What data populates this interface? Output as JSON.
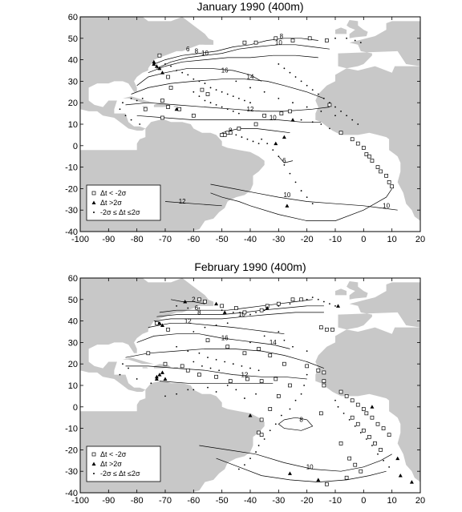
{
  "panels": [
    {
      "id": "jan",
      "title": "January 1990 (400m)",
      "legend": {
        "items": [
          {
            "symbol": "square",
            "label": "Δt < -2σ"
          },
          {
            "symbol": "triangle",
            "label": "Δt >2σ"
          },
          {
            "symbol": "dot",
            "label": "-2σ ≤ Δt ≤2σ"
          }
        ]
      },
      "contour_labels": [
        {
          "text": "6",
          "lon": -62,
          "lat": 44
        },
        {
          "text": "8",
          "lon": -59,
          "lat": 43
        },
        {
          "text": "10",
          "lon": -56,
          "lat": 42
        },
        {
          "text": "8",
          "lon": -29,
          "lat": 50
        },
        {
          "text": "10",
          "lon": -30,
          "lat": 47
        },
        {
          "text": "16",
          "lon": -49,
          "lat": 34
        },
        {
          "text": "14",
          "lon": -40,
          "lat": 31
        },
        {
          "text": "12",
          "lon": -40,
          "lat": 16
        },
        {
          "text": "10",
          "lon": -32,
          "lat": 12
        },
        {
          "text": "8",
          "lon": -47,
          "lat": 6
        },
        {
          "text": "6",
          "lon": -28,
          "lat": -8
        },
        {
          "text": "10",
          "lon": -27,
          "lat": -24
        },
        {
          "text": "12",
          "lon": -64,
          "lat": -27
        },
        {
          "text": "10",
          "lon": 8,
          "lat": -29
        }
      ],
      "squares": [
        [
          -72,
          42
        ],
        [
          -42,
          48
        ],
        [
          -38,
          48
        ],
        [
          -31,
          50
        ],
        [
          -25,
          49
        ],
        [
          -19,
          50
        ],
        [
          -13,
          49
        ],
        [
          -69,
          32
        ],
        [
          -68,
          27
        ],
        [
          -57,
          26
        ],
        [
          -55,
          24
        ],
        [
          -71,
          21
        ],
        [
          -69,
          18
        ],
        [
          -77,
          17
        ],
        [
          -65,
          17
        ],
        [
          -60,
          14
        ],
        [
          -71,
          13
        ],
        [
          -12,
          19
        ],
        [
          -26,
          16
        ],
        [
          -29,
          15
        ],
        [
          -35,
          14
        ],
        [
          -38,
          10
        ],
        [
          -44,
          8
        ],
        [
          -47,
          6
        ],
        [
          -48,
          6
        ],
        [
          -49,
          5
        ],
        [
          -50,
          5
        ],
        [
          -8,
          6
        ],
        [
          -4,
          3
        ],
        [
          -2,
          1
        ],
        [
          0,
          -1
        ],
        [
          1,
          -4
        ],
        [
          2,
          -5
        ],
        [
          3,
          -7
        ],
        [
          5,
          -10
        ],
        [
          6,
          -12
        ],
        [
          8,
          -14
        ],
        [
          9,
          -17
        ],
        [
          10,
          -19
        ]
      ],
      "triangles": [
        [
          -74,
          38
        ],
        [
          -73,
          37
        ],
        [
          -74,
          39
        ],
        [
          -72,
          36
        ],
        [
          -71,
          34
        ],
        [
          -66,
          17
        ],
        [
          -25,
          12
        ],
        [
          -28,
          4
        ],
        [
          -31,
          1
        ],
        [
          -27,
          -28
        ]
      ],
      "dots": [
        [
          -70,
          38
        ],
        [
          -68,
          37
        ],
        [
          -66,
          35
        ],
        [
          -64,
          34
        ],
        [
          -62,
          33
        ],
        [
          -60,
          31
        ],
        [
          -58,
          30
        ],
        [
          -56,
          29
        ],
        [
          -54,
          27
        ],
        [
          -52,
          26
        ],
        [
          -50,
          25
        ],
        [
          -48,
          24
        ],
        [
          -46,
          23
        ],
        [
          -44,
          22
        ],
        [
          -42,
          21
        ],
        [
          -40,
          20
        ],
        [
          -60,
          25
        ],
        [
          -58,
          23
        ],
        [
          -56,
          21
        ],
        [
          -54,
          20
        ],
        [
          -52,
          19
        ],
        [
          -50,
          18
        ],
        [
          -48,
          17
        ],
        [
          -46,
          16
        ],
        [
          -44,
          15
        ],
        [
          -30,
          38
        ],
        [
          -28,
          36
        ],
        [
          -26,
          34
        ],
        [
          -24,
          32
        ],
        [
          -22,
          30
        ],
        [
          -20,
          28
        ],
        [
          -18,
          26
        ],
        [
          -16,
          24
        ],
        [
          -14,
          22
        ],
        [
          -12,
          20
        ],
        [
          -10,
          18
        ],
        [
          -8,
          16
        ],
        [
          -6,
          14
        ],
        [
          -4,
          12
        ],
        [
          -2,
          10
        ],
        [
          -36,
          3
        ],
        [
          -34,
          1
        ],
        [
          -32,
          -2
        ],
        [
          -30,
          -5
        ],
        [
          -28,
          -9
        ],
        [
          -26,
          -13
        ],
        [
          -24,
          -17
        ],
        [
          -22,
          -21
        ],
        [
          -20,
          -24
        ],
        [
          -18,
          -27
        ],
        [
          -45,
          30
        ],
        [
          -40,
          27
        ],
        [
          -35,
          25
        ],
        [
          -30,
          22
        ],
        [
          -25,
          20
        ],
        [
          -20,
          18
        ],
        [
          -15,
          16
        ],
        [
          -10,
          14
        ],
        [
          -82,
          22
        ],
        [
          -80,
          21
        ],
        [
          -78,
          22
        ],
        [
          -85,
          20
        ],
        [
          -86,
          17
        ],
        [
          -84,
          14
        ],
        [
          -82,
          12
        ],
        [
          -79,
          10
        ],
        [
          -10,
          50
        ],
        [
          -6,
          50
        ],
        [
          -3,
          49
        ],
        [
          -1,
          48
        ],
        [
          -45,
          5
        ],
        [
          -43,
          4
        ],
        [
          -41,
          3
        ],
        [
          -39,
          2
        ],
        [
          -37,
          1
        ],
        [
          -22,
          12
        ],
        [
          -18,
          11
        ],
        [
          -15,
          10
        ],
        [
          -12,
          8
        ]
      ]
    },
    {
      "id": "feb",
      "title": "February 1990 (400m)",
      "legend": {
        "items": [
          {
            "symbol": "square",
            "label": "Δt < -2σ"
          },
          {
            "symbol": "triangle",
            "label": "Δt >2σ"
          },
          {
            "symbol": "dot",
            "label": "-2σ ≤ Δt ≤2σ"
          }
        ]
      },
      "contour_labels": [
        {
          "text": "2",
          "lon": -60,
          "lat": 49
        },
        {
          "text": "6",
          "lon": -59,
          "lat": 45
        },
        {
          "text": "8",
          "lon": -58,
          "lat": 43
        },
        {
          "text": "10",
          "lon": -43,
          "lat": 42
        },
        {
          "text": "12",
          "lon": -62,
          "lat": 39
        },
        {
          "text": "16",
          "lon": -49,
          "lat": 31
        },
        {
          "text": "14",
          "lon": -32,
          "lat": 29
        },
        {
          "text": "12",
          "lon": -42,
          "lat": 14
        },
        {
          "text": "8",
          "lon": -22,
          "lat": -7
        },
        {
          "text": "10",
          "lon": -19,
          "lat": -29
        }
      ],
      "squares": [
        [
          -58,
          50
        ],
        [
          -56,
          49
        ],
        [
          -50,
          47
        ],
        [
          -45,
          46
        ],
        [
          -42,
          44
        ],
        [
          -36,
          45
        ],
        [
          -34,
          47
        ],
        [
          -30,
          48
        ],
        [
          -25,
          50
        ],
        [
          -22,
          50
        ],
        [
          -15,
          37
        ],
        [
          -13,
          36
        ],
        [
          -11,
          36
        ],
        [
          -73,
          39
        ],
        [
          -69,
          36
        ],
        [
          -55,
          31
        ],
        [
          -48,
          28
        ],
        [
          -42,
          25
        ],
        [
          -37,
          27
        ],
        [
          -33,
          24
        ],
        [
          -28,
          20
        ],
        [
          -76,
          25
        ],
        [
          -70,
          20
        ],
        [
          -64,
          19
        ],
        [
          -62,
          17
        ],
        [
          -58,
          15
        ],
        [
          -52,
          14
        ],
        [
          -47,
          12
        ],
        [
          -41,
          13
        ],
        [
          -36,
          12
        ],
        [
          -31,
          13
        ],
        [
          -26,
          10
        ],
        [
          -20,
          19
        ],
        [
          -16,
          17
        ],
        [
          -14,
          16
        ],
        [
          -14,
          12
        ],
        [
          -14,
          10
        ],
        [
          -30,
          5
        ],
        [
          -33,
          -1
        ],
        [
          -36,
          -6
        ],
        [
          -37,
          -12
        ],
        [
          -36,
          -13
        ],
        [
          -8,
          7
        ],
        [
          -6,
          5
        ],
        [
          -4,
          3
        ],
        [
          -2,
          1
        ],
        [
          0,
          -1
        ],
        [
          1,
          -3
        ],
        [
          3,
          -5
        ],
        [
          5,
          -8
        ],
        [
          7,
          -10
        ],
        [
          9,
          -13
        ],
        [
          -4,
          -5
        ],
        [
          -2,
          -8
        ],
        [
          0,
          -11
        ],
        [
          2,
          -14
        ],
        [
          4,
          -17
        ],
        [
          6,
          -20
        ],
        [
          -15,
          -3
        ],
        [
          -8,
          -17
        ],
        [
          -5,
          -24
        ],
        [
          -3,
          -27
        ],
        [
          -1,
          -30
        ],
        [
          -6,
          -33
        ],
        [
          -13,
          -36
        ]
      ],
      "triangles": [
        [
          -63,
          49
        ],
        [
          -49,
          44
        ],
        [
          -34,
          46
        ],
        [
          -52,
          48
        ],
        [
          -72,
          39
        ],
        [
          -71,
          38
        ],
        [
          -73,
          13
        ],
        [
          -73,
          14
        ],
        [
          -72,
          15
        ],
        [
          -70,
          13
        ],
        [
          -71,
          16
        ],
        [
          -9,
          47
        ],
        [
          -26,
          -31
        ],
        [
          -16,
          -34
        ],
        [
          12,
          -24
        ],
        [
          13,
          -32
        ],
        [
          17,
          -35
        ],
        [
          3,
          0
        ],
        [
          -40,
          -4
        ]
      ],
      "dots": [
        [
          -66,
          47
        ],
        [
          -62,
          46
        ],
        [
          -58,
          46
        ],
        [
          -50,
          45
        ],
        [
          -46,
          44
        ],
        [
          -40,
          43
        ],
        [
          -38,
          44
        ],
        [
          -35,
          45
        ],
        [
          -30,
          47
        ],
        [
          -26,
          48
        ],
        [
          -20,
          50
        ],
        [
          -18,
          51
        ],
        [
          -16,
          50
        ],
        [
          -14,
          49
        ],
        [
          -12,
          48
        ],
        [
          -10,
          47
        ],
        [
          -66,
          28
        ],
        [
          -62,
          26
        ],
        [
          -58,
          25
        ],
        [
          -55,
          23
        ],
        [
          -52,
          22
        ],
        [
          -49,
          21
        ],
        [
          -46,
          20
        ],
        [
          -43,
          19
        ],
        [
          -40,
          18
        ],
        [
          -37,
          17
        ],
        [
          -60,
          21
        ],
        [
          -57,
          19
        ],
        [
          -54,
          18
        ],
        [
          -51,
          17
        ],
        [
          -20,
          15
        ],
        [
          -21,
          10
        ],
        [
          -22,
          6
        ],
        [
          -24,
          3
        ],
        [
          -26,
          -1
        ],
        [
          -29,
          -4
        ],
        [
          -31,
          -8
        ],
        [
          -33,
          -11
        ],
        [
          -35,
          -15
        ],
        [
          -37,
          -18
        ],
        [
          -38,
          -21
        ],
        [
          -40,
          -24
        ],
        [
          -42,
          -27
        ],
        [
          -44,
          -29
        ],
        [
          -10,
          3
        ],
        [
          -9,
          0
        ],
        [
          -7,
          -3
        ],
        [
          -5,
          -6
        ],
        [
          -3,
          -9
        ],
        [
          -1,
          -12
        ],
        [
          1,
          -15
        ],
        [
          3,
          -18
        ],
        [
          5,
          -22
        ],
        [
          7,
          -25
        ],
        [
          9,
          -28
        ],
        [
          -85,
          20
        ],
        [
          -83,
          18
        ],
        [
          -86,
          15
        ],
        [
          -80,
          13
        ],
        [
          -75,
          11
        ],
        [
          -60,
          8
        ],
        [
          -55,
          9
        ],
        [
          -52,
          7
        ],
        [
          -48,
          10
        ],
        [
          -45,
          8
        ],
        [
          -40,
          30
        ],
        [
          -35,
          33
        ],
        [
          -30,
          35
        ],
        [
          -28,
          31
        ],
        [
          -25,
          28
        ],
        [
          -20,
          26
        ],
        [
          -60,
          35
        ],
        [
          -56,
          37
        ],
        [
          -52,
          38
        ],
        [
          -48,
          39
        ],
        [
          -70,
          5
        ],
        [
          -66,
          6
        ],
        [
          -62,
          8
        ],
        [
          -42,
          4
        ],
        [
          -38,
          6
        ]
      ]
    }
  ],
  "axes": {
    "x_ticks": [
      "-100",
      "-90",
      "-80",
      "-70",
      "-60",
      "-50",
      "-40",
      "-30",
      "-20",
      "-10",
      "0",
      "10",
      "20"
    ],
    "y_ticks": [
      "60",
      "50",
      "40",
      "30",
      "20",
      "10",
      "0",
      "-10",
      "-20",
      "-30",
      "-40"
    ],
    "x_range": [
      -100,
      20
    ],
    "y_range": [
      -40,
      60
    ]
  },
  "colors": {
    "land": "#c8c8c8",
    "ocean": "#ffffff",
    "contour": "#000000",
    "frame": "#000000"
  }
}
